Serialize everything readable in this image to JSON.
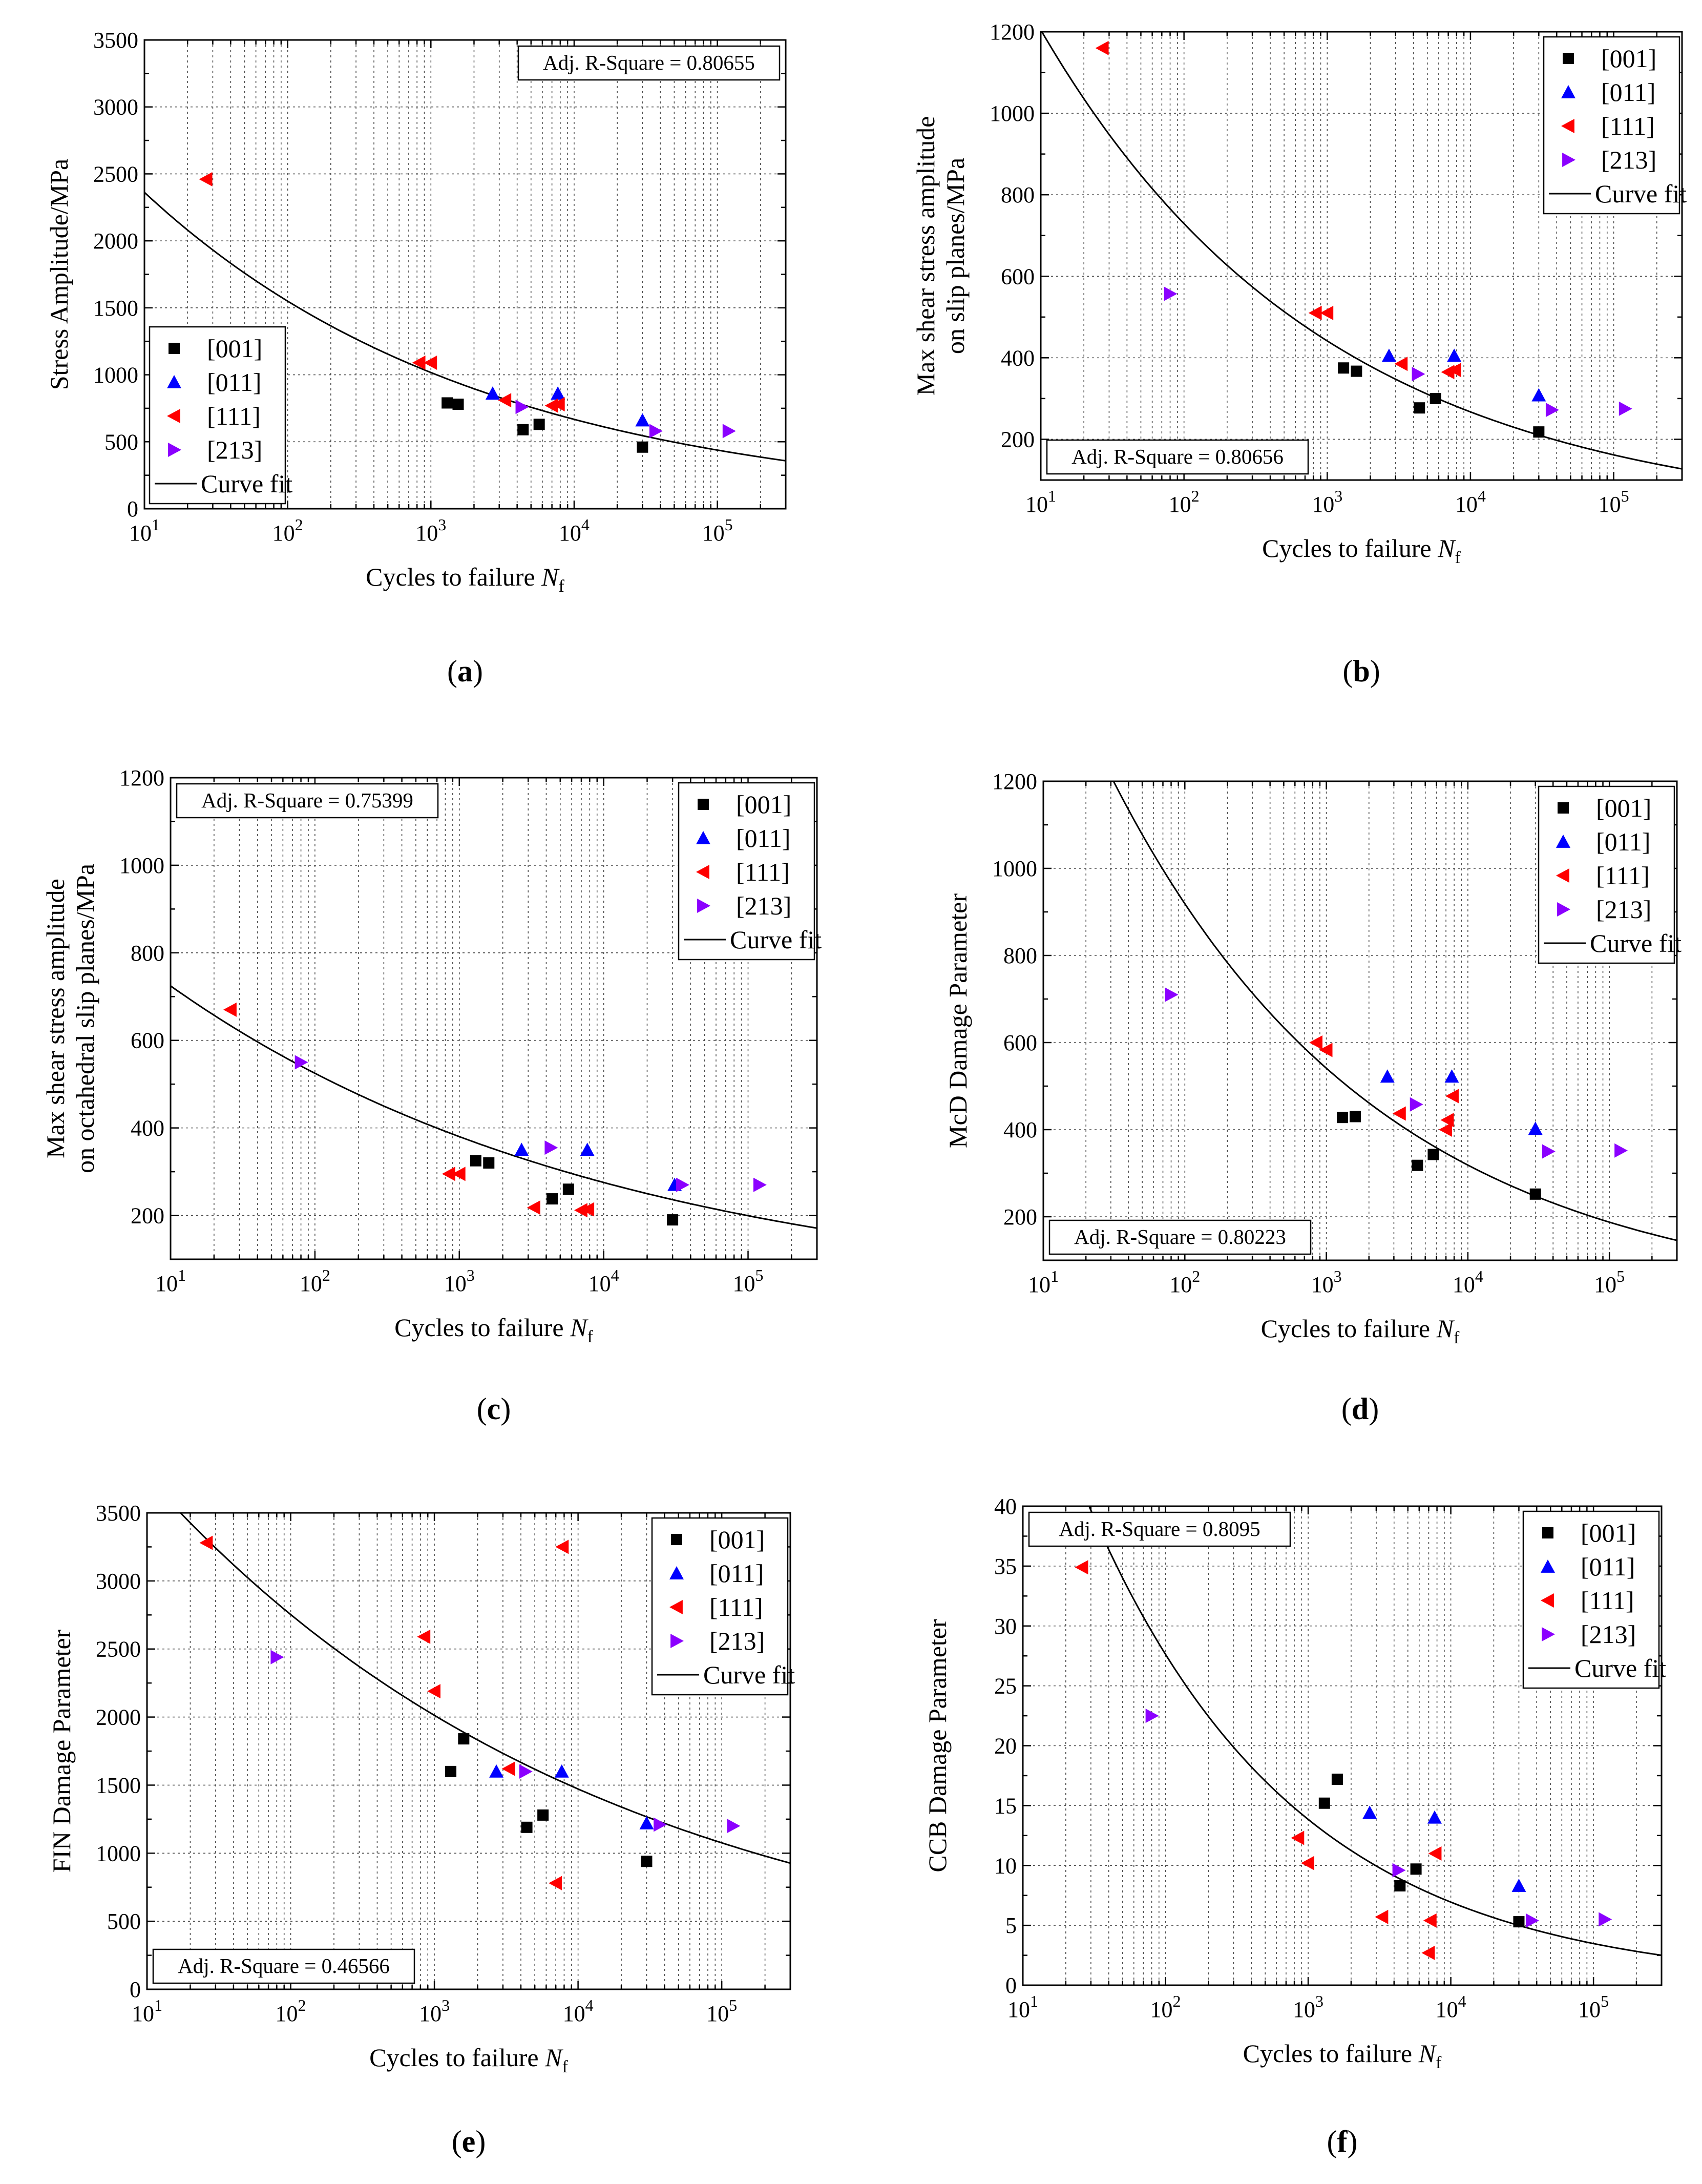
{
  "figure": {
    "legend_labels": {
      "s001": "[001]",
      "s011": "[011]",
      "s111": "[111]",
      "s213": "[213]",
      "fit": "Curve fit"
    },
    "colors": {
      "s001": "#000000",
      "s011": "#0000ff",
      "s111": "#ff0000",
      "s213": "#8b00ff",
      "fit": "#000000"
    },
    "markers": {
      "s001": "square",
      "s011": "triangle-up",
      "s111": "triangle-left",
      "s213": "triangle-right"
    }
  },
  "chart_data": [
    {
      "id": "a",
      "label": "a",
      "type": "scatter",
      "xscale": "log",
      "xlim": [
        10,
        300000
      ],
      "xticks": [
        10,
        100,
        1000,
        10000,
        100000
      ],
      "xlabel": "Cycles to failure ",
      "xlabel_var": "N",
      "xlabel_sub": "f",
      "ylabel": [
        "Stress Amplitude/MPa"
      ],
      "ylim": [
        0,
        3500
      ],
      "yticks": [
        0,
        500,
        1000,
        1500,
        2000,
        2500,
        3000,
        3500
      ],
      "r2": "Adj. R-Square = 0.80655",
      "r2_pos": "top-right",
      "legend_pos": "bottom-left",
      "series": [
        {
          "name": "[001]",
          "key": "s001",
          "points": [
            [
              1300,
              790
            ],
            [
              1550,
              780
            ],
            [
              4400,
              590
            ],
            [
              5700,
              630
            ],
            [
              30000,
              460
            ]
          ]
        },
        {
          "name": "[011]",
          "key": "s011",
          "points": [
            [
              2700,
              860
            ],
            [
              7700,
              860
            ],
            [
              30000,
              660
            ]
          ]
        },
        {
          "name": "[111]",
          "key": "s111",
          "points": [
            [
              27,
              2460
            ],
            [
              830,
              1090
            ],
            [
              1000,
              1090
            ],
            [
              3300,
              810
            ],
            [
              7000,
              770
            ],
            [
              7800,
              780
            ]
          ]
        },
        {
          "name": "[213]",
          "key": "s213",
          "points": [
            [
              4300,
              760
            ],
            [
              37000,
              580
            ],
            [
              120000,
              580
            ]
          ]
        }
      ],
      "fit": {
        "A": 3600,
        "b": -0.183
      }
    },
    {
      "id": "b",
      "label": "b",
      "type": "scatter",
      "xscale": "log",
      "xlim": [
        10,
        300000
      ],
      "xticks": [
        10,
        100,
        1000,
        10000,
        100000
      ],
      "xlabel": "Cycles to failure ",
      "xlabel_var": "N",
      "xlabel_sub": "f",
      "ylabel": [
        "Max shear stress amplitude",
        "on slip planes/MPa"
      ],
      "ylim": [
        100,
        1200
      ],
      "yticks": [
        200,
        400,
        600,
        800,
        1000,
        1200
      ],
      "r2": "Adj. R-Square = 0.80656",
      "r2_pos": "bottom-left",
      "legend_pos": "top-right",
      "series": [
        {
          "name": "[001]",
          "key": "s001",
          "points": [
            [
              1300,
              375
            ],
            [
              1600,
              367
            ],
            [
              4400,
              277
            ],
            [
              5700,
              300
            ],
            [
              30000,
              218
            ]
          ]
        },
        {
          "name": "[011]",
          "key": "s011",
          "points": [
            [
              2700,
              405
            ],
            [
              7700,
              405
            ],
            [
              30000,
              308
            ]
          ]
        },
        {
          "name": "[111]",
          "key": "s111",
          "points": [
            [
              27,
              1160
            ],
            [
              830,
              510
            ],
            [
              1000,
              510
            ],
            [
              3300,
              385
            ],
            [
              7000,
              365
            ],
            [
              7800,
              370
            ]
          ]
        },
        {
          "name": "[213]",
          "key": "s213",
          "points": [
            [
              80,
              557
            ],
            [
              4300,
              360
            ],
            [
              37000,
              272
            ],
            [
              120000,
              275
            ]
          ]
        }
      ],
      "fit": {
        "A": 1990,
        "b": -0.218
      }
    },
    {
      "id": "c",
      "label": "c",
      "type": "scatter",
      "xscale": "log",
      "xlim": [
        10,
        300000
      ],
      "xticks": [
        10,
        100,
        1000,
        10000,
        100000
      ],
      "xlabel": "Cycles to failure ",
      "xlabel_var": "N",
      "xlabel_sub": "f",
      "ylabel": [
        "Max shear stress amplitude",
        "on octahedral slip planes/MPa"
      ],
      "ylim": [
        100,
        1200
      ],
      "yticks": [
        200,
        400,
        600,
        800,
        1000,
        1200
      ],
      "r2": "Adj. R-Square = 0.75399",
      "r2_pos": "top-left",
      "legend_pos": "top-right",
      "series": [
        {
          "name": "[001]",
          "key": "s001",
          "points": [
            [
              1300,
              325
            ],
            [
              1600,
              320
            ],
            [
              4400,
              238
            ],
            [
              5700,
              260
            ],
            [
              30000,
              190
            ]
          ]
        },
        {
          "name": "[011]",
          "key": "s011",
          "points": [
            [
              2700,
              350
            ],
            [
              7700,
              350
            ],
            [
              31000,
              270
            ]
          ]
        },
        {
          "name": "[111]",
          "key": "s111",
          "points": [
            [
              26,
              670
            ],
            [
              850,
              295
            ],
            [
              1000,
              295
            ],
            [
              3300,
              218
            ],
            [
              7000,
              212
            ],
            [
              7800,
              214
            ]
          ]
        },
        {
          "name": "[213]",
          "key": "s213",
          "points": [
            [
              80,
              550
            ],
            [
              4300,
              355
            ],
            [
              35000,
              270
            ],
            [
              120000,
              270
            ]
          ]
        }
      ],
      "fit": {
        "A": 1000,
        "b": -0.14
      }
    },
    {
      "id": "d",
      "label": "d",
      "type": "scatter",
      "xscale": "log",
      "xlim": [
        10,
        300000
      ],
      "xticks": [
        10,
        100,
        1000,
        10000,
        100000
      ],
      "xlabel": "Cycles to failure ",
      "xlabel_var": "N",
      "xlabel_sub": "f",
      "ylabel": [
        "McD Damage Parameter"
      ],
      "ylim": [
        100,
        1200
      ],
      "yticks": [
        200,
        400,
        600,
        800,
        1000,
        1200
      ],
      "r2": "Adj. R-Square = 0.80223",
      "r2_pos": "bottom-left",
      "legend_pos": "top-right",
      "series": [
        {
          "name": "[001]",
          "key": "s001",
          "points": [
            [
              1300,
              428
            ],
            [
              1600,
              430
            ],
            [
              4400,
              318
            ],
            [
              5700,
              343
            ],
            [
              30000,
              252
            ]
          ]
        },
        {
          "name": "[011]",
          "key": "s011",
          "points": [
            [
              2700,
              522
            ],
            [
              7700,
              522
            ],
            [
              30000,
              402
            ]
          ]
        },
        {
          "name": "[111]",
          "key": "s111",
          "points": [
            [
              850,
              600
            ],
            [
              1000,
              583
            ],
            [
              3300,
              437
            ],
            [
              7000,
              400
            ],
            [
              7200,
              422
            ],
            [
              7800,
              477
            ]
          ]
        },
        {
          "name": "[213]",
          "key": "s213",
          "points": [
            [
              80,
              710
            ],
            [
              4300,
              458
            ],
            [
              37000,
              350
            ],
            [
              120000,
              352
            ]
          ]
        }
      ],
      "fit": {
        "A": 2650,
        "b": -0.23
      }
    },
    {
      "id": "e",
      "label": "e",
      "type": "scatter",
      "xscale": "log",
      "xlim": [
        10,
        300000
      ],
      "xticks": [
        10,
        100,
        1000,
        10000,
        100000
      ],
      "xlabel": "Cycles to failure ",
      "xlabel_var": "N",
      "xlabel_sub": "f",
      "ylabel": [
        "FIN Damage Parameter"
      ],
      "ylim": [
        0,
        3500
      ],
      "yticks": [
        0,
        500,
        1000,
        1500,
        2000,
        2500,
        3000,
        3500
      ],
      "r2": "Adj. R-Square = 0.46566",
      "r2_pos": "bottom-left",
      "legend_pos": "top-right",
      "series": [
        {
          "name": "[001]",
          "key": "s001",
          "points": [
            [
              1300,
              1600
            ],
            [
              1600,
              1840
            ],
            [
              4400,
              1190
            ],
            [
              5700,
              1280
            ],
            [
              30000,
              940
            ]
          ]
        },
        {
          "name": "[011]",
          "key": "s011",
          "points": [
            [
              2700,
              1600
            ],
            [
              7700,
              1600
            ],
            [
              30000,
              1220
            ]
          ]
        },
        {
          "name": "[111]",
          "key": "s111",
          "points": [
            [
              26,
              3280
            ],
            [
              850,
              2590
            ],
            [
              1000,
              2190
            ],
            [
              3300,
              1620
            ],
            [
              7000,
              780
            ],
            [
              7800,
              3250
            ]
          ]
        },
        {
          "name": "[213]",
          "key": "s213",
          "points": [
            [
              80,
              2440
            ],
            [
              4300,
              1600
            ],
            [
              37000,
              1210
            ],
            [
              120000,
              1200
            ]
          ]
        }
      ],
      "fit": {
        "A": 5150,
        "b": -0.136
      }
    },
    {
      "id": "f",
      "label": "f",
      "type": "scatter",
      "xscale": "log",
      "xlim": [
        10,
        300000
      ],
      "xticks": [
        10,
        100,
        1000,
        10000,
        100000
      ],
      "xlabel": "Cycles to failure ",
      "xlabel_var": "N",
      "xlabel_sub": "f",
      "ylabel": [
        "CCB Damage Parameter"
      ],
      "ylim": [
        0,
        40
      ],
      "yticks": [
        0,
        5,
        10,
        15,
        20,
        25,
        30,
        35,
        40
      ],
      "r2": "Adj. R-Square = 0.8095",
      "r2_pos": "top-left",
      "legend_pos": "top-right",
      "series": [
        {
          "name": "[001]",
          "key": "s001",
          "points": [
            [
              1300,
              15.2
            ],
            [
              1600,
              17.2
            ],
            [
              4400,
              8.3
            ],
            [
              5700,
              9.7
            ],
            [
              30000,
              5.3
            ]
          ]
        },
        {
          "name": "[011]",
          "key": "s011",
          "points": [
            [
              2700,
              14.4
            ],
            [
              7700,
              14.0
            ],
            [
              30000,
              8.3
            ]
          ]
        },
        {
          "name": "[111]",
          "key": "s111",
          "points": [
            [
              26,
              34.9
            ],
            [
              850,
              12.3
            ],
            [
              1000,
              10.2
            ],
            [
              3300,
              5.7
            ],
            [
              7000,
              2.7
            ],
            [
              7200,
              5.4
            ],
            [
              7800,
              11.0
            ]
          ]
        },
        {
          "name": "[213]",
          "key": "s213",
          "points": [
            [
              80,
              22.5
            ],
            [
              4300,
              9.6
            ],
            [
              37000,
              5.4
            ],
            [
              120000,
              5.5
            ]
          ]
        }
      ],
      "fit": {
        "A": 110,
        "b": -0.3
      }
    }
  ]
}
